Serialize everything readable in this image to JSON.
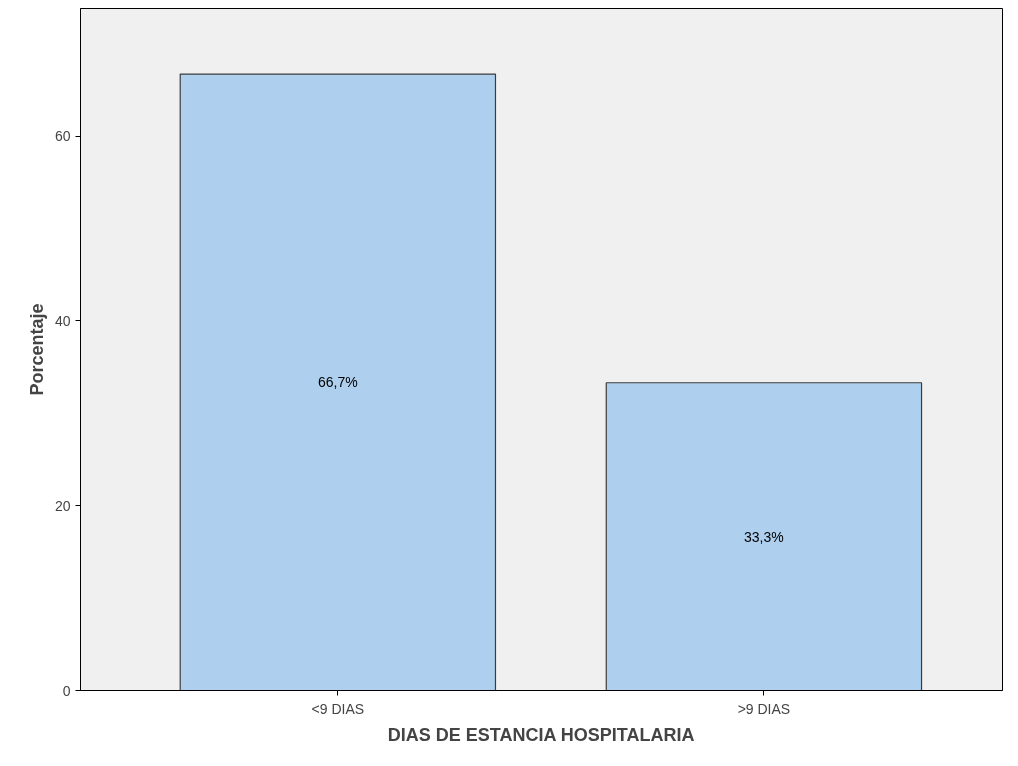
{
  "chart_data": {
    "type": "bar",
    "xlabel": "DIAS DE ESTANCIA HOSPITALARIA",
    "ylabel": "Porcentaje",
    "categories": [
      "<9 DIAS",
      ">9 DIAS"
    ],
    "values": [
      66.7,
      33.3
    ],
    "value_labels": [
      "66,7%",
      "33,3%"
    ],
    "color": "#aecfed",
    "ylim": [
      0,
      73.8
    ],
    "yticks": [
      0,
      20,
      40,
      60
    ],
    "grid": false
  }
}
